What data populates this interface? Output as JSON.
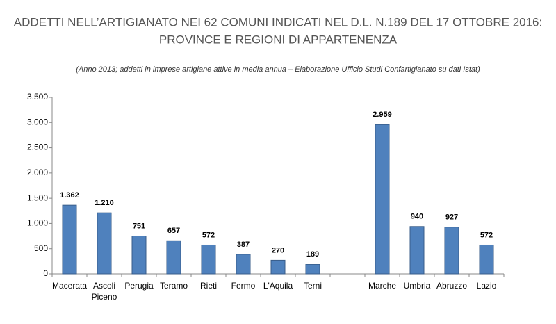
{
  "chart_data": {
    "type": "bar",
    "title": [
      "ADDETTI NELL’ARTIGIANATO NEI 62 COMUNI INDICATI NEL D.L. N.189 DEL 17 OTTOBRE 2016:",
      "PROVINCE E REGIONI DI APPARTENENZA"
    ],
    "subtitle": "(Anno 2013; addetti in imprese artigiane attive in media annua – Elaborazione Ufficio Studi Confartigianato su dati Istat)",
    "categories": [
      "Macerata",
      "Ascoli Piceno",
      "Perugia",
      "Teramo",
      "Rieti",
      "Fermo",
      "L'Aquila",
      "Terni",
      null,
      "Marche",
      "Umbria",
      "Abruzzo",
      "Lazio"
    ],
    "values": [
      1362,
      1210,
      751,
      657,
      572,
      387,
      270,
      189,
      null,
      2959,
      940,
      927,
      572
    ],
    "value_labels": [
      "1.362",
      "1.210",
      "751",
      "657",
      "572",
      "387",
      "270",
      "189",
      null,
      "2.959",
      "940",
      "927",
      "572"
    ],
    "color": "#4f81bd",
    "ylim": [
      0,
      3500
    ],
    "yticks": [
      0,
      500,
      {
        "value": 1000,
        "label": "1.000"
      },
      {
        "value": 1500,
        "label": "1.500"
      },
      {
        "value": 2000,
        "label": "2.000"
      },
      {
        "value": 2500,
        "label": "2.500"
      },
      {
        "value": 3000,
        "label": "3.000"
      },
      {
        "value": 3500,
        "label": "3.500"
      }
    ],
    "grid": false
  }
}
